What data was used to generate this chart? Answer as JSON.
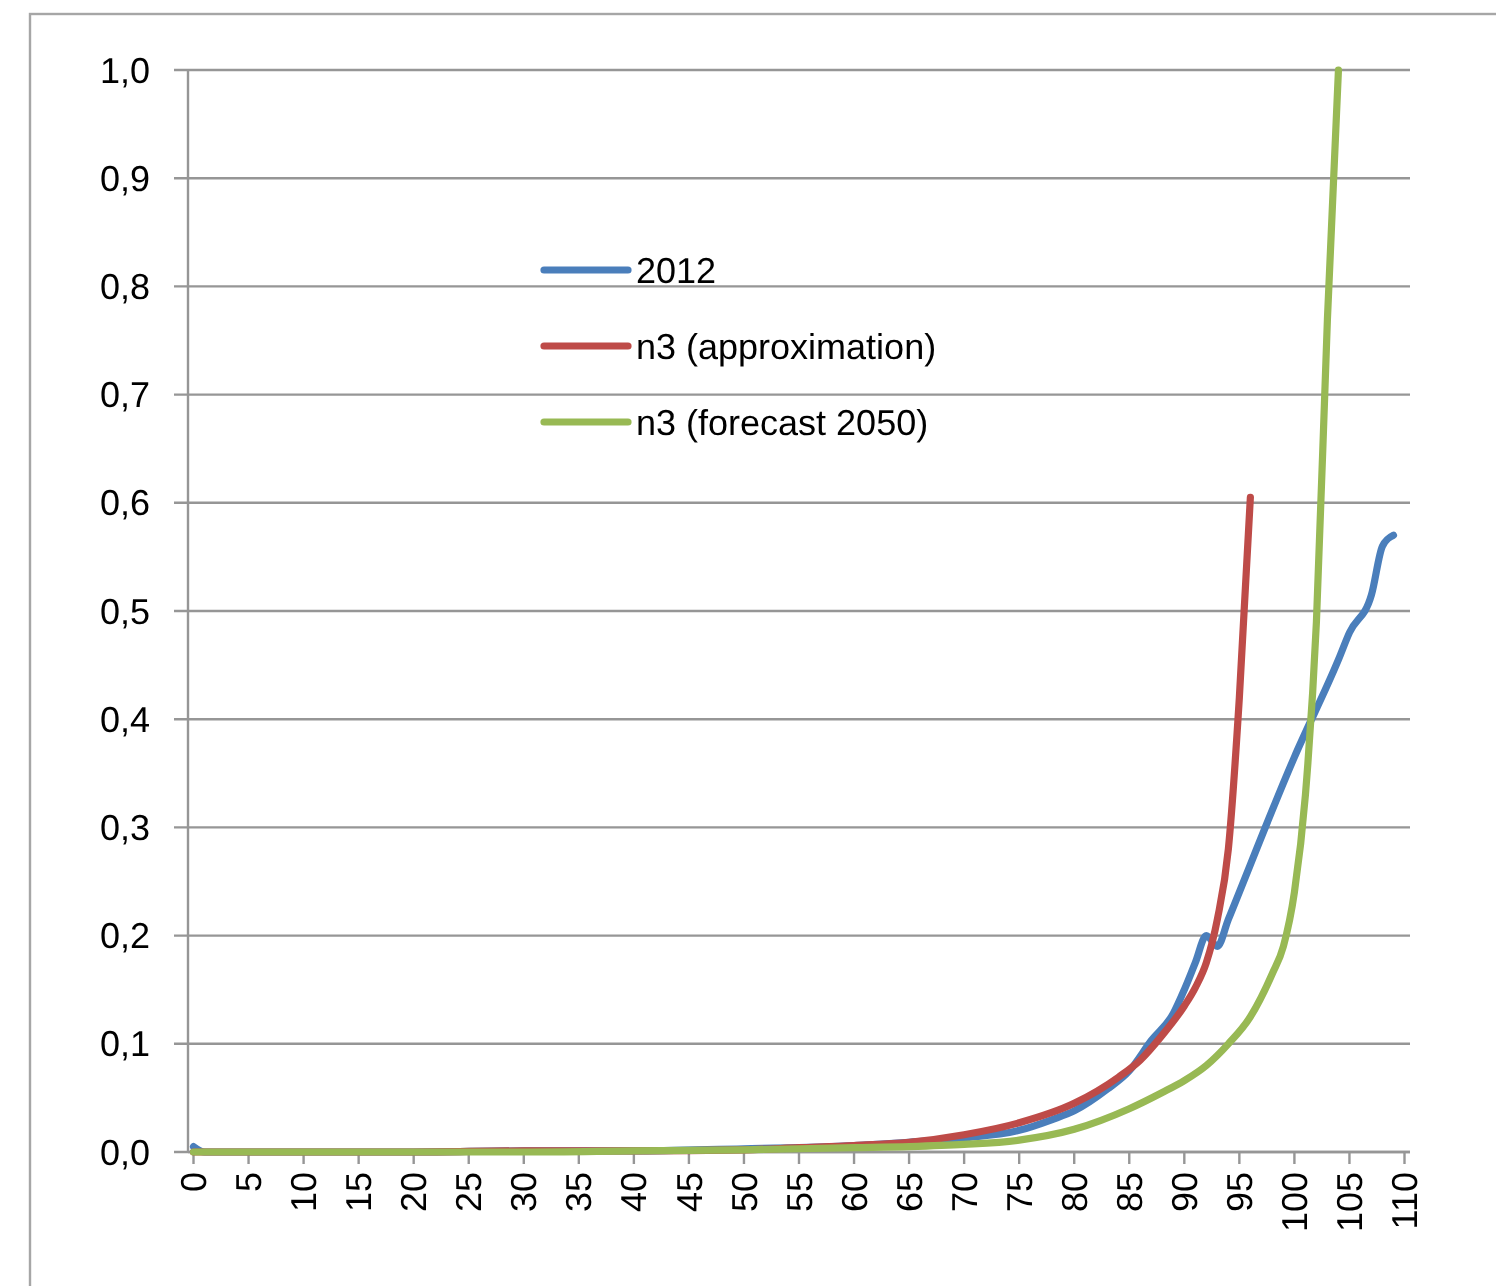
{
  "chart_data": {
    "type": "line",
    "xlim": [
      -0.5,
      110.5
    ],
    "xticks": [
      0,
      5,
      10,
      15,
      20,
      25,
      30,
      35,
      40,
      45,
      50,
      55,
      60,
      65,
      70,
      75,
      80,
      85,
      90,
      95,
      100,
      105,
      110
    ],
    "ylim": [
      0,
      1
    ],
    "yticks": [
      {
        "value": 0,
        "label": "0,0"
      },
      {
        "value": 0.1,
        "label": "0,1"
      },
      {
        "value": 0.2,
        "label": "0,2"
      },
      {
        "value": 0.3,
        "label": "0,3"
      },
      {
        "value": 0.4,
        "label": "0,4"
      },
      {
        "value": 0.5,
        "label": "0,5"
      },
      {
        "value": 0.6,
        "label": "0,6"
      },
      {
        "value": 0.7,
        "label": "0,7"
      },
      {
        "value": 0.8,
        "label": "0,8"
      },
      {
        "value": 0.9,
        "label": "0,9"
      },
      {
        "value": 1,
        "label": "1,0"
      }
    ],
    "grid": "y",
    "legend": "top",
    "marker": "none",
    "line_style": "solid",
    "series": [
      {
        "name": "2012",
        "color": "#4a7ebb",
        "x": [
          0,
          1,
          5,
          10,
          20,
          30,
          40,
          50,
          55,
          60,
          65,
          70,
          75,
          78,
          80,
          83,
          85,
          87,
          89,
          90,
          91,
          92,
          93,
          94,
          100,
          104,
          105,
          107,
          108,
          109
        ],
        "values": [
          0.005,
          0,
          0,
          0,
          0,
          0.001,
          0.001,
          0.003,
          0.004,
          0.006,
          0.009,
          0.013,
          0.02,
          0.03,
          0.038,
          0.058,
          0.075,
          0.103,
          0.128,
          0.15,
          0.175,
          0.2,
          0.19,
          0.215,
          0.365,
          0.455,
          0.48,
          0.515,
          0.56,
          0.57
        ]
      },
      {
        "name": "n3 (approximation)",
        "color": "#be4b48",
        "x": [
          0,
          10,
          20,
          30,
          40,
          50,
          55,
          60,
          65,
          70,
          75,
          80,
          84,
          86,
          88,
          90,
          91,
          92,
          93,
          94,
          95,
          96
        ],
        "values": [
          0,
          0,
          0,
          0.001,
          0.001,
          0.002,
          0.004,
          0.006,
          0.009,
          0.016,
          0.027,
          0.045,
          0.069,
          0.085,
          0.108,
          0.135,
          0.152,
          0.175,
          0.215,
          0.28,
          0.42,
          0.605
        ]
      },
      {
        "name": "n3 (forecast 2050)",
        "color": "#98b954",
        "x": [
          0,
          10,
          20,
          30,
          40,
          50,
          55,
          60,
          65,
          70,
          75,
          80,
          85,
          88,
          90,
          92,
          94,
          96,
          98,
          99,
          100,
          101,
          102,
          103,
          104
        ],
        "values": [
          0,
          0,
          0,
          0,
          0.001,
          0.002,
          0.003,
          0.004,
          0.005,
          0.007,
          0.011,
          0.021,
          0.04,
          0.055,
          0.066,
          0.08,
          0.1,
          0.125,
          0.165,
          0.19,
          0.24,
          0.33,
          0.49,
          0.77,
          1.0
        ]
      }
    ]
  }
}
